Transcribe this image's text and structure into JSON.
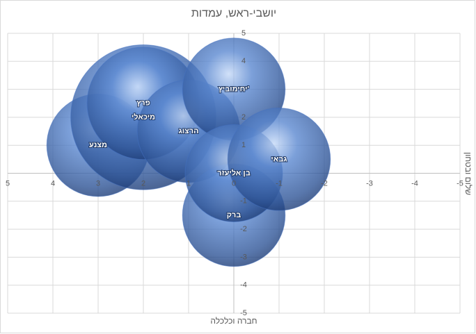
{
  "chart_data": {
    "type": "bubble",
    "title": "יושבי-ראש, עמדות",
    "x_label": "חברה וכלכלה",
    "y_label": "שלום ובטחון",
    "xlim": [
      5,
      -5
    ],
    "ylim": [
      -5,
      5
    ],
    "xticks": [
      5,
      4,
      3,
      2,
      1,
      0,
      -1,
      -2,
      -3,
      -4,
      -5
    ],
    "yticks": [
      5,
      4,
      3,
      2,
      1,
      -1,
      -2,
      -3,
      -4,
      -5
    ],
    "grid": true,
    "color": "#4472c4",
    "points": [
      {
        "label": "מצנע",
        "x": 3,
        "y": 1,
        "size": 5
      },
      {
        "label": "מיכאלי",
        "x": 2,
        "y": 2,
        "size": 10
      },
      {
        "label": "פרץ",
        "x": 2,
        "y": 2.5,
        "size": 6
      },
      {
        "label": "הרצוג",
        "x": 1,
        "y": 1.5,
        "size": 5
      },
      {
        "label": "יחימוביץ'",
        "x": 0,
        "y": 3,
        "size": 5
      },
      {
        "label": "ברק",
        "x": 0,
        "y": -1.5,
        "size": 5
      },
      {
        "label": "בן אליעזר",
        "x": 0,
        "y": 0,
        "size": 4.5
      },
      {
        "label": "גבאי",
        "x": -1,
        "y": 0.5,
        "size": 5
      }
    ]
  }
}
